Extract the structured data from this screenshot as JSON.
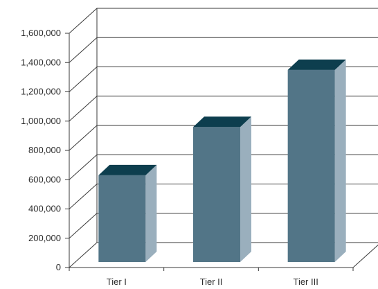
{
  "chart_data": {
    "type": "bar",
    "categories": [
      "Tier I",
      "Tier II",
      "Tier III"
    ],
    "values": [
      630000,
      960000,
      1350000
    ],
    "ylim": [
      0,
      1600000
    ],
    "yticks": [
      "0",
      "200,000",
      "400,000",
      "600,000",
      "800,000",
      "1,000,000",
      "1,200,000",
      "1,400,000",
      "1,600,000"
    ],
    "grid": true,
    "style": "3d-column",
    "colors": {
      "bar_front": "#527587",
      "bar_side": "#9aafbd",
      "bar_top": "#0d3e4e"
    }
  }
}
